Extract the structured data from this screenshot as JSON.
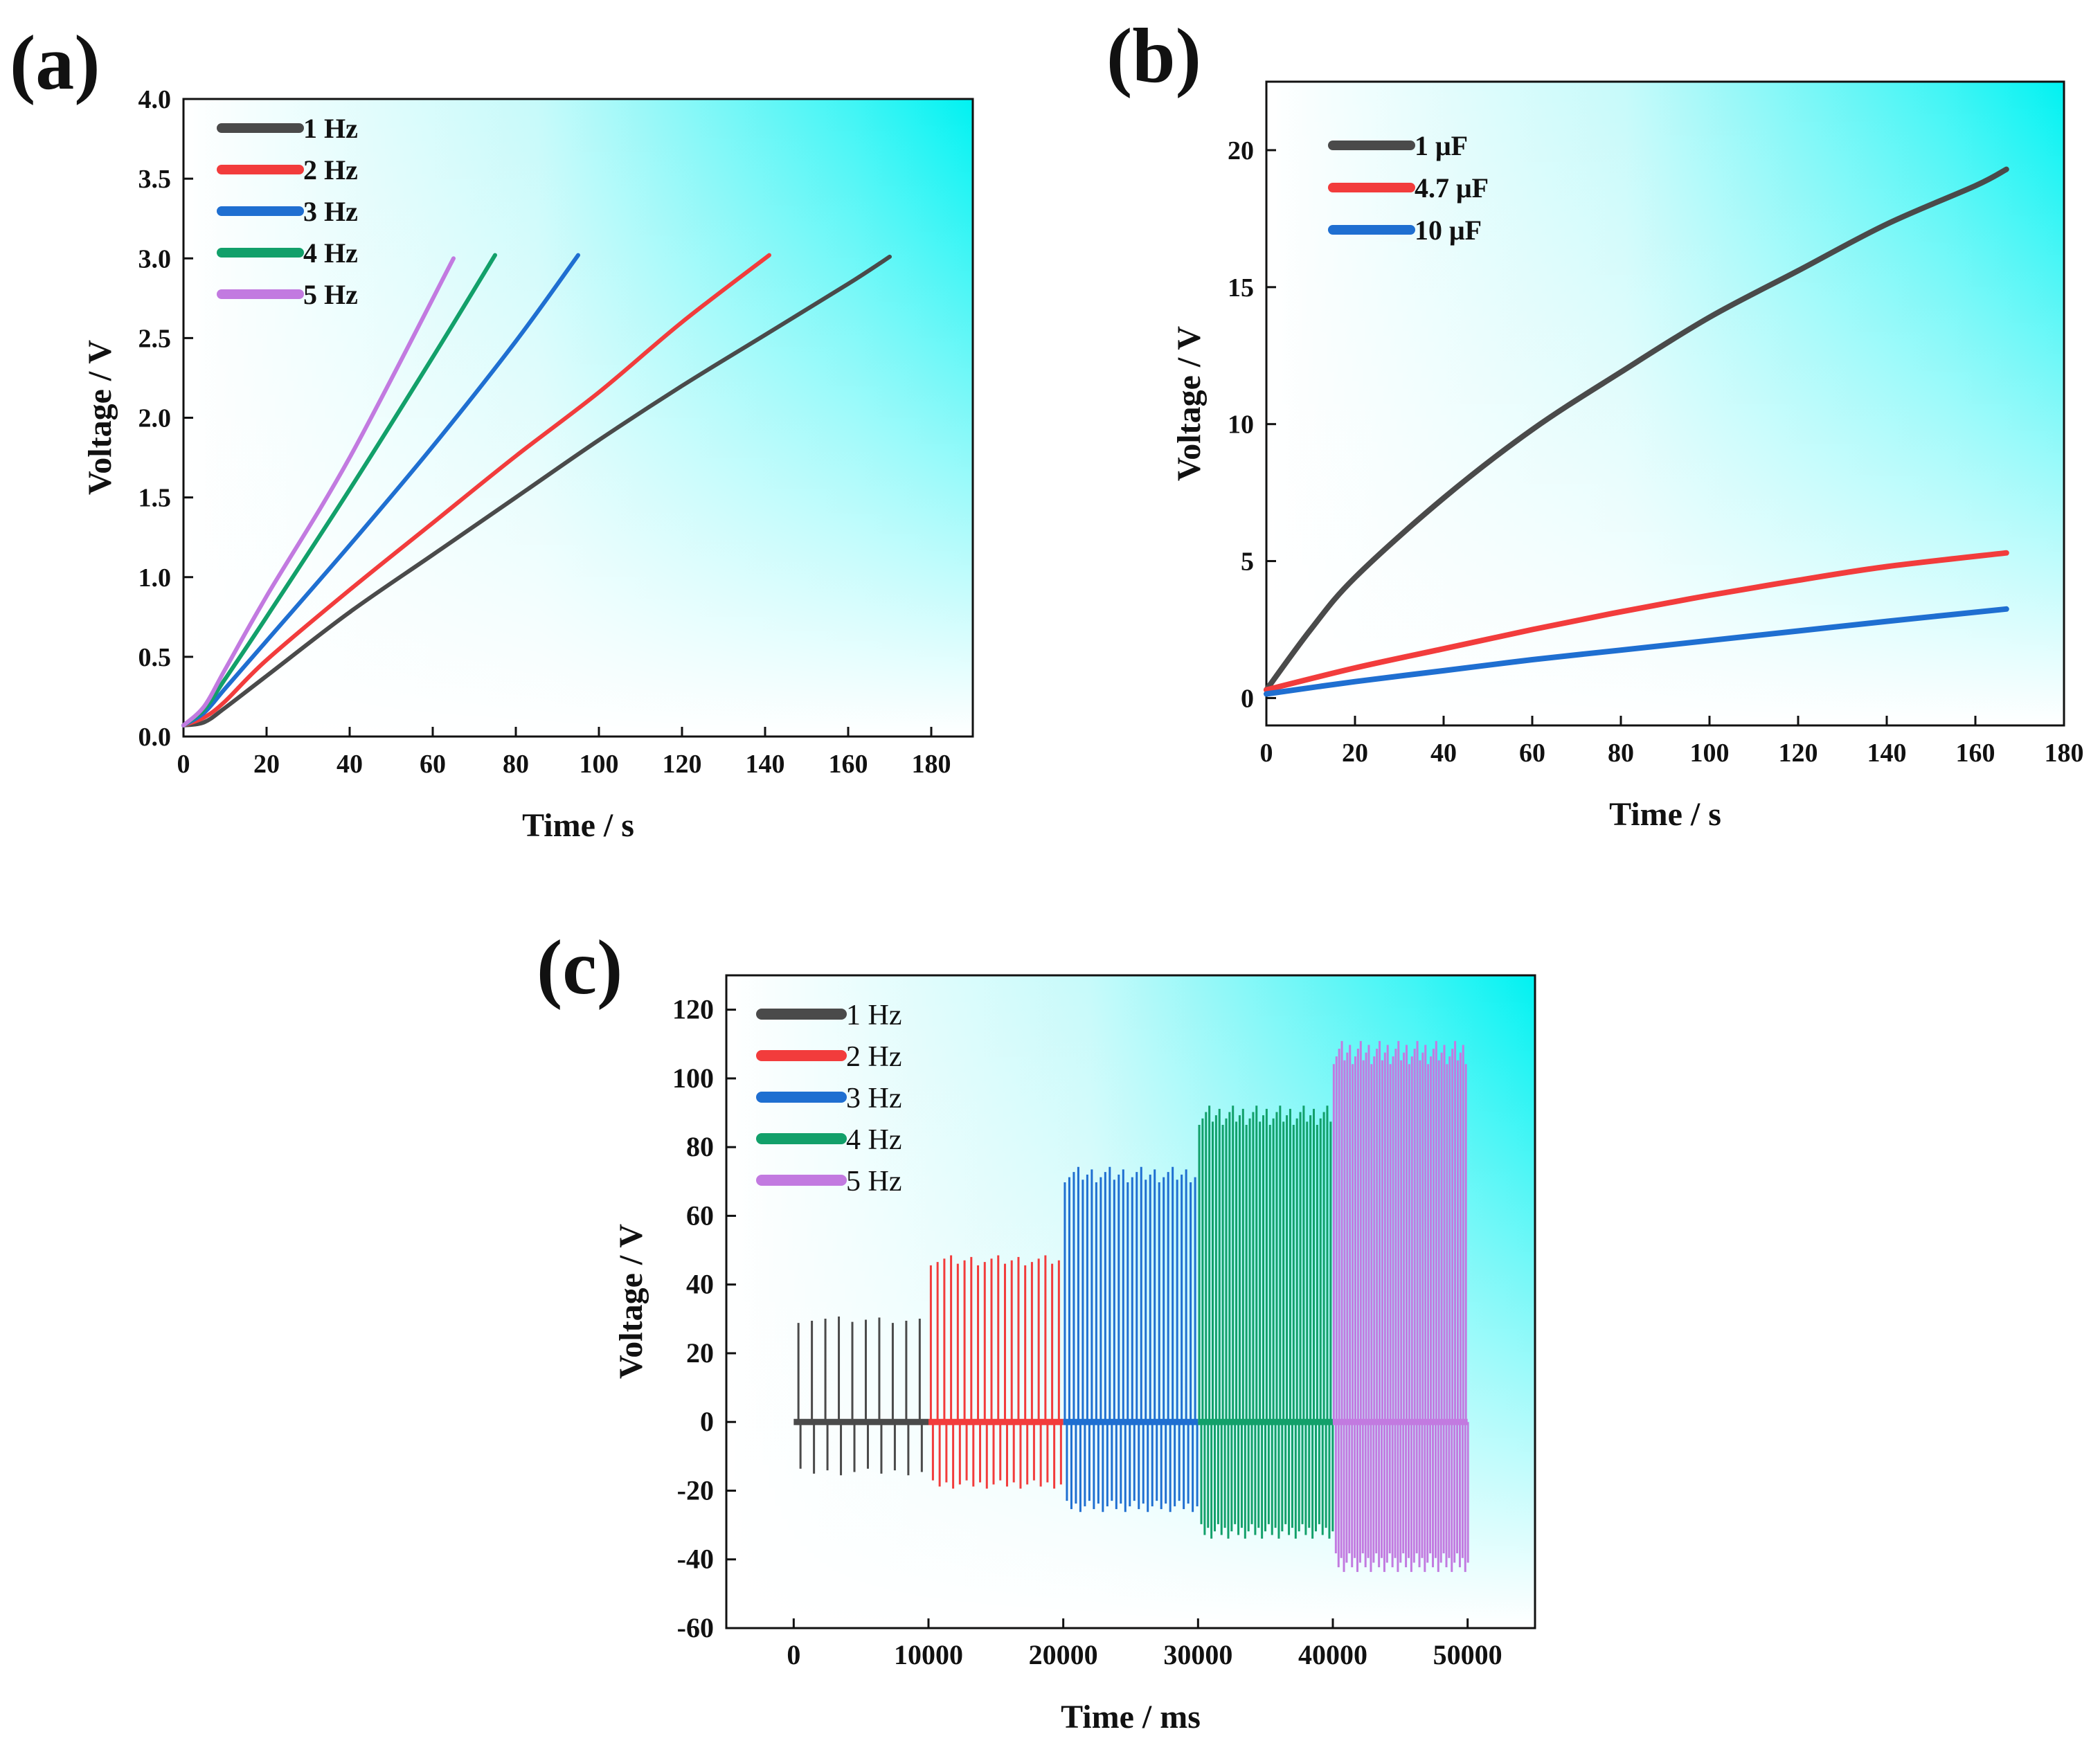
{
  "chart_data": [
    {
      "panel": "(a)",
      "type": "line",
      "xlabel": "Time / s",
      "ylabel": "Voltage / V",
      "xlim": [
        0,
        190
      ],
      "ylim": [
        0,
        4.0
      ],
      "xticks": [
        0,
        20,
        40,
        60,
        80,
        100,
        120,
        140,
        160,
        180
      ],
      "yticks": [
        0.0,
        0.5,
        1.0,
        1.5,
        2.0,
        2.5,
        3.0,
        3.5,
        4.0
      ],
      "legend_position": "top-left",
      "series": [
        {
          "name": "1 Hz",
          "color": "#4a4a4a",
          "x": [
            0,
            5,
            10,
            20,
            40,
            60,
            80,
            100,
            120,
            140,
            160,
            170
          ],
          "y": [
            0.07,
            0.09,
            0.18,
            0.38,
            0.78,
            1.14,
            1.5,
            1.86,
            2.2,
            2.52,
            2.84,
            3.01
          ]
        },
        {
          "name": "2 Hz",
          "color": "#f23c3c",
          "x": [
            0,
            5,
            10,
            20,
            40,
            60,
            80,
            100,
            120,
            141
          ],
          "y": [
            0.07,
            0.12,
            0.22,
            0.48,
            0.92,
            1.34,
            1.76,
            2.16,
            2.6,
            3.02
          ]
        },
        {
          "name": "3 Hz",
          "color": "#1f6fd1",
          "x": [
            0,
            5,
            10,
            20,
            40,
            60,
            80,
            95
          ],
          "y": [
            0.07,
            0.15,
            0.3,
            0.6,
            1.2,
            1.82,
            2.48,
            3.02
          ]
        },
        {
          "name": "4 Hz",
          "color": "#12a06a",
          "x": [
            0,
            5,
            10,
            20,
            40,
            60,
            75
          ],
          "y": [
            0.07,
            0.17,
            0.36,
            0.75,
            1.55,
            2.38,
            3.02
          ]
        },
        {
          "name": "5 Hz",
          "color": "#c27ae0",
          "x": [
            0,
            5,
            10,
            20,
            40,
            65
          ],
          "y": [
            0.07,
            0.19,
            0.42,
            0.88,
            1.75,
            3.0
          ]
        }
      ]
    },
    {
      "panel": "(b)",
      "type": "line",
      "xlabel": "Time / s",
      "ylabel": "Voltage / V",
      "xlim": [
        0,
        180
      ],
      "ylim": [
        -1,
        22.5
      ],
      "xticks": [
        0,
        20,
        40,
        60,
        80,
        100,
        120,
        140,
        160,
        180
      ],
      "yticks": [
        0,
        5,
        10,
        15,
        20
      ],
      "legend_position": "top-left",
      "series": [
        {
          "name": "1 μF",
          "color": "#4a4a4a",
          "x": [
            0,
            10,
            20,
            40,
            60,
            80,
            100,
            120,
            140,
            160,
            167
          ],
          "y": [
            0.3,
            2.5,
            4.4,
            7.3,
            9.8,
            11.9,
            13.9,
            15.6,
            17.3,
            18.7,
            19.3
          ]
        },
        {
          "name": "4.7 μF",
          "color": "#f23c3c",
          "x": [
            0,
            20,
            40,
            60,
            80,
            100,
            120,
            140,
            167
          ],
          "y": [
            0.3,
            1.1,
            1.8,
            2.5,
            3.15,
            3.75,
            4.3,
            4.8,
            5.3
          ]
        },
        {
          "name": "10 μF",
          "color": "#1f6fd1",
          "x": [
            0,
            20,
            40,
            60,
            80,
            100,
            120,
            140,
            167
          ],
          "y": [
            0.15,
            0.6,
            1.0,
            1.4,
            1.75,
            2.1,
            2.45,
            2.8,
            3.25
          ]
        }
      ]
    },
    {
      "panel": "(c)",
      "type": "line",
      "xlabel": "Time / ms",
      "ylabel": "Voltage / V",
      "xlim": [
        -5000,
        55000
      ],
      "ylim": [
        -60,
        130
      ],
      "xticks": [
        0,
        10000,
        20000,
        30000,
        40000,
        50000
      ],
      "yticks": [
        -60,
        -40,
        -20,
        0,
        20,
        40,
        60,
        80,
        100,
        120
      ],
      "legend_position": "top-left",
      "series": [
        {
          "name": "1 Hz",
          "color": "#4a4a4a",
          "x_range": [
            0,
            10000
          ],
          "peak": 31,
          "trough": -16
        },
        {
          "name": "2 Hz",
          "color": "#f23c3c",
          "x_range": [
            10000,
            20000
          ],
          "peak": 49,
          "trough": -20
        },
        {
          "name": "3 Hz",
          "color": "#1f6fd1",
          "x_range": [
            20000,
            30000
          ],
          "peak": 75,
          "trough": -27
        },
        {
          "name": "4 Hz",
          "color": "#12a06a",
          "x_range": [
            30000,
            40000
          ],
          "peak": 93,
          "trough": -35
        },
        {
          "name": "5 Hz",
          "color": "#c27ae0",
          "x_range": [
            40000,
            50000
          ],
          "peak": 112,
          "trough": -45
        }
      ]
    }
  ],
  "panels": {
    "a": {
      "label": "(a)"
    },
    "b": {
      "label": "(b)"
    },
    "c": {
      "label": "(c)"
    }
  },
  "colors": {
    "cyan_accent": "#00f5f5",
    "background": "#ffffff"
  }
}
